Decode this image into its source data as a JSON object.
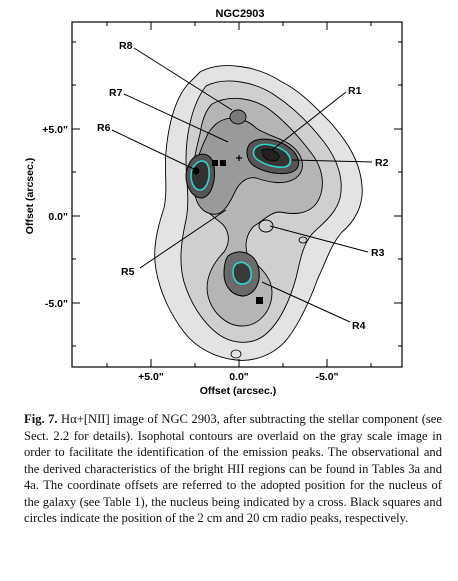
{
  "figure": {
    "title": "NGC2903",
    "y_axis_title": "Offset (arcsec.)",
    "x_axis_title": "Offset (arcsec.)",
    "y_ticks": [
      "+5.0\"",
      "0.0\"",
      "-5.0\""
    ],
    "x_ticks": [
      "+5.0\"",
      "0.0\"",
      "-5.0\""
    ],
    "regions": [
      {
        "label": "R1"
      },
      {
        "label": "R2"
      },
      {
        "label": "R3"
      },
      {
        "label": "R4"
      },
      {
        "label": "R5"
      },
      {
        "label": "R6"
      },
      {
        "label": "R7"
      },
      {
        "label": "R8"
      }
    ]
  },
  "caption": {
    "label": "Fig. 7.",
    "text": "Hα+[NII] image of NGC 2903, after subtracting the stellar component (see Sect. 2.2 for details). Isophotal contours are overlaid on the gray scale image in order to facilitate the identification of the emission peaks. The observational and the derived characteristics of the bright HII regions can be found in Tables 3a and 4a. The coordinate offsets are referred to the adopted position for the nucleus of the galaxy (see Table 1), the nucleus being indicated by a cross. Black squares and circles indicate the position of the 2 cm and 20 cm radio peaks, respectively."
  }
}
